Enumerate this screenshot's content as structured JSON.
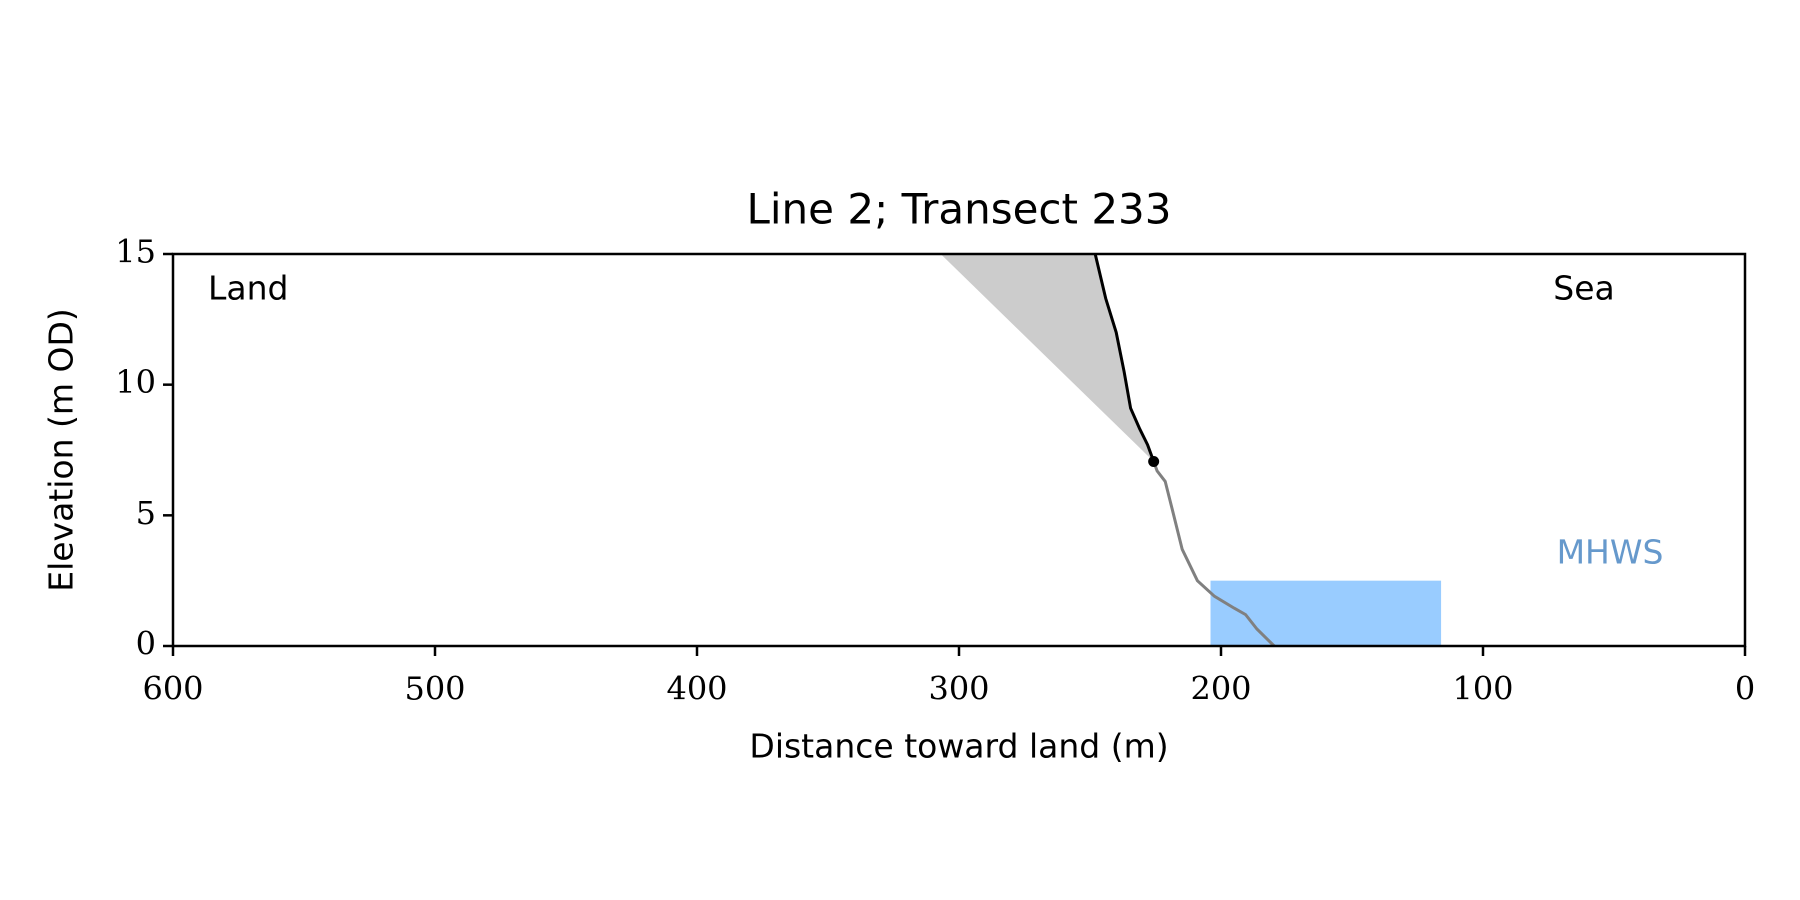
{
  "chart_data": {
    "type": "line",
    "title": "Line 2; Transect 233",
    "xlabel": "Distance toward land (m)",
    "ylabel": "Elevation (m OD)",
    "xlim": [
      600,
      0
    ],
    "ylim": [
      0,
      15
    ],
    "xticks": [
      600,
      500,
      400,
      300,
      200,
      100,
      0
    ],
    "yticks": [
      0,
      5,
      10,
      15
    ],
    "land_label": "Land",
    "sea_label": "Sea",
    "shaded": {
      "color": "#cccccc",
      "x": [
        307,
        248,
        244,
        240,
        237,
        234.5,
        231,
        228,
        225.7
      ],
      "values": [
        15,
        15,
        13.3,
        12,
        10.5,
        9.1,
        8.3,
        7.7,
        7.06
      ]
    },
    "mhws": {
      "label": "MHWS",
      "color": "#99ccff",
      "label_color": "#6699cc",
      "x": [
        204,
        116
      ],
      "y": 2.5
    },
    "series": [
      {
        "color": "#000000",
        "x": [
          248,
          244,
          240,
          237,
          234.5,
          231,
          228,
          225.7
        ],
        "values": [
          15,
          13.3,
          12,
          10.5,
          9.1,
          8.3,
          7.7,
          7.06
        ]
      },
      {
        "color": "#808080",
        "x": [
          225.7,
          224.4,
          221.3,
          218.3,
          214.8,
          209,
          202.5,
          195,
          190.6,
          186.3,
          179.7
        ],
        "values": [
          7.06,
          6.7,
          6.3,
          5.1,
          3.7,
          2.5,
          1.9,
          1.45,
          1.2,
          0.65,
          0
        ]
      }
    ],
    "marker": {
      "x": 225.7,
      "y": 7.06,
      "color": "#000000"
    }
  }
}
